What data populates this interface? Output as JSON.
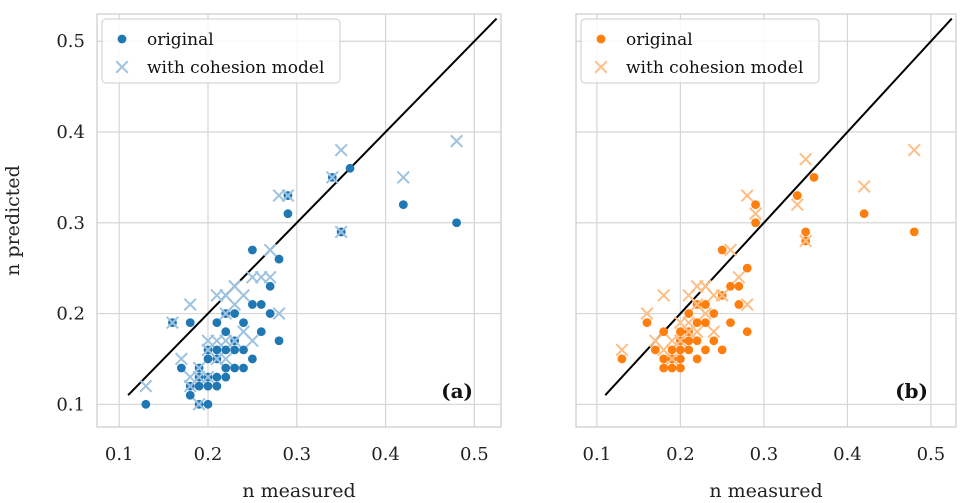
{
  "chart_data": [
    {
      "type": "scatter",
      "panel_label": "(a)",
      "xlabel": "n measured",
      "ylabel": "n predicted",
      "xlim": [
        0.075,
        0.53
      ],
      "ylim": [
        0.075,
        0.53
      ],
      "xticks": [
        "0.1",
        "0.2",
        "0.3",
        "0.4",
        "0.5"
      ],
      "yticks": [
        "0.1",
        "0.2",
        "0.3",
        "0.4",
        "0.5"
      ],
      "grid": true,
      "legend_position": "top-left",
      "identity_line": {
        "from": [
          0.11,
          0.11
        ],
        "to": [
          0.525,
          0.525
        ],
        "color": "#000000"
      },
      "series": [
        {
          "name": "original",
          "marker": "circle",
          "color": "#1f77b4",
          "points": [
            [
              0.13,
              0.1
            ],
            [
              0.16,
              0.19
            ],
            [
              0.17,
              0.14
            ],
            [
              0.18,
              0.19
            ],
            [
              0.18,
              0.12
            ],
            [
              0.18,
              0.11
            ],
            [
              0.19,
              0.13
            ],
            [
              0.19,
              0.12
            ],
            [
              0.19,
              0.1
            ],
            [
              0.19,
              0.14
            ],
            [
              0.2,
              0.15
            ],
            [
              0.2,
              0.16
            ],
            [
              0.2,
              0.13
            ],
            [
              0.2,
              0.1
            ],
            [
              0.2,
              0.12
            ],
            [
              0.21,
              0.19
            ],
            [
              0.21,
              0.16
            ],
            [
              0.21,
              0.15
            ],
            [
              0.21,
              0.13
            ],
            [
              0.21,
              0.12
            ],
            [
              0.22,
              0.2
            ],
            [
              0.22,
              0.18
            ],
            [
              0.22,
              0.16
            ],
            [
              0.22,
              0.14
            ],
            [
              0.22,
              0.13
            ],
            [
              0.23,
              0.2
            ],
            [
              0.23,
              0.17
            ],
            [
              0.23,
              0.16
            ],
            [
              0.23,
              0.14
            ],
            [
              0.24,
              0.19
            ],
            [
              0.24,
              0.16
            ],
            [
              0.24,
              0.14
            ],
            [
              0.25,
              0.27
            ],
            [
              0.25,
              0.21
            ],
            [
              0.25,
              0.15
            ],
            [
              0.26,
              0.21
            ],
            [
              0.26,
              0.18
            ],
            [
              0.27,
              0.23
            ],
            [
              0.27,
              0.2
            ],
            [
              0.28,
              0.26
            ],
            [
              0.28,
              0.17
            ],
            [
              0.29,
              0.33
            ],
            [
              0.29,
              0.31
            ],
            [
              0.34,
              0.35
            ],
            [
              0.35,
              0.29
            ],
            [
              0.35,
              0.29
            ],
            [
              0.36,
              0.36
            ],
            [
              0.42,
              0.32
            ],
            [
              0.48,
              0.3
            ]
          ]
        },
        {
          "name": "with cohesion model",
          "marker": "x",
          "color": "#9dc3e0",
          "points": [
            [
              0.13,
              0.12
            ],
            [
              0.16,
              0.19
            ],
            [
              0.17,
              0.15
            ],
            [
              0.18,
              0.21
            ],
            [
              0.18,
              0.13
            ],
            [
              0.18,
              0.12
            ],
            [
              0.19,
              0.14
            ],
            [
              0.19,
              0.13
            ],
            [
              0.19,
              0.1
            ],
            [
              0.2,
              0.17
            ],
            [
              0.2,
              0.16
            ],
            [
              0.2,
              0.13
            ],
            [
              0.21,
              0.22
            ],
            [
              0.21,
              0.17
            ],
            [
              0.21,
              0.15
            ],
            [
              0.22,
              0.22
            ],
            [
              0.22,
              0.2
            ],
            [
              0.22,
              0.17
            ],
            [
              0.22,
              0.15
            ],
            [
              0.23,
              0.23
            ],
            [
              0.23,
              0.21
            ],
            [
              0.23,
              0.17
            ],
            [
              0.24,
              0.22
            ],
            [
              0.24,
              0.18
            ],
            [
              0.25,
              0.24
            ],
            [
              0.25,
              0.17
            ],
            [
              0.26,
              0.24
            ],
            [
              0.27,
              0.27
            ],
            [
              0.27,
              0.24
            ],
            [
              0.28,
              0.33
            ],
            [
              0.28,
              0.2
            ],
            [
              0.29,
              0.33
            ],
            [
              0.34,
              0.35
            ],
            [
              0.35,
              0.38
            ],
            [
              0.35,
              0.29
            ],
            [
              0.42,
              0.35
            ],
            [
              0.48,
              0.39
            ]
          ]
        }
      ]
    },
    {
      "type": "scatter",
      "panel_label": "(b)",
      "xlabel": "n measured",
      "xlim": [
        0.075,
        0.53
      ],
      "ylim": [
        0.075,
        0.53
      ],
      "xticks": [
        "0.1",
        "0.2",
        "0.3",
        "0.4",
        "0.5"
      ],
      "grid": true,
      "legend_position": "top-left",
      "identity_line": {
        "from": [
          0.11,
          0.11
        ],
        "to": [
          0.525,
          0.525
        ],
        "color": "#000000"
      },
      "series": [
        {
          "name": "original",
          "marker": "circle",
          "color": "#ff7f0e",
          "points": [
            [
              0.13,
              0.15
            ],
            [
              0.16,
              0.19
            ],
            [
              0.17,
              0.16
            ],
            [
              0.18,
              0.18
            ],
            [
              0.18,
              0.15
            ],
            [
              0.18,
              0.14
            ],
            [
              0.19,
              0.16
            ],
            [
              0.19,
              0.15
            ],
            [
              0.19,
              0.14
            ],
            [
              0.2,
              0.18
            ],
            [
              0.2,
              0.17
            ],
            [
              0.2,
              0.16
            ],
            [
              0.2,
              0.14
            ],
            [
              0.2,
              0.15
            ],
            [
              0.21,
              0.2
            ],
            [
              0.21,
              0.18
            ],
            [
              0.21,
              0.17
            ],
            [
              0.21,
              0.16
            ],
            [
              0.22,
              0.21
            ],
            [
              0.22,
              0.19
            ],
            [
              0.22,
              0.17
            ],
            [
              0.22,
              0.15
            ],
            [
              0.23,
              0.21
            ],
            [
              0.23,
              0.19
            ],
            [
              0.23,
              0.16
            ],
            [
              0.24,
              0.2
            ],
            [
              0.24,
              0.17
            ],
            [
              0.25,
              0.27
            ],
            [
              0.25,
              0.22
            ],
            [
              0.25,
              0.16
            ],
            [
              0.26,
              0.23
            ],
            [
              0.26,
              0.19
            ],
            [
              0.27,
              0.23
            ],
            [
              0.27,
              0.21
            ],
            [
              0.28,
              0.25
            ],
            [
              0.28,
              0.18
            ],
            [
              0.29,
              0.32
            ],
            [
              0.29,
              0.3
            ],
            [
              0.34,
              0.33
            ],
            [
              0.35,
              0.29
            ],
            [
              0.35,
              0.28
            ],
            [
              0.36,
              0.35
            ],
            [
              0.42,
              0.31
            ],
            [
              0.48,
              0.29
            ]
          ]
        },
        {
          "name": "with cohesion model",
          "marker": "x",
          "color": "#fdbf87",
          "points": [
            [
              0.13,
              0.16
            ],
            [
              0.16,
              0.2
            ],
            [
              0.17,
              0.17
            ],
            [
              0.18,
              0.22
            ],
            [
              0.18,
              0.16
            ],
            [
              0.19,
              0.17
            ],
            [
              0.19,
              0.15
            ],
            [
              0.2,
              0.19
            ],
            [
              0.2,
              0.17
            ],
            [
              0.21,
              0.22
            ],
            [
              0.21,
              0.19
            ],
            [
              0.21,
              0.18
            ],
            [
              0.22,
              0.23
            ],
            [
              0.22,
              0.21
            ],
            [
              0.22,
              0.18
            ],
            [
              0.23,
              0.23
            ],
            [
              0.23,
              0.2
            ],
            [
              0.24,
              0.22
            ],
            [
              0.24,
              0.18
            ],
            [
              0.25,
              0.22
            ],
            [
              0.26,
              0.27
            ],
            [
              0.27,
              0.24
            ],
            [
              0.28,
              0.33
            ],
            [
              0.28,
              0.21
            ],
            [
              0.29,
              0.31
            ],
            [
              0.34,
              0.32
            ],
            [
              0.35,
              0.37
            ],
            [
              0.35,
              0.28
            ],
            [
              0.42,
              0.34
            ],
            [
              0.48,
              0.38
            ]
          ]
        }
      ]
    }
  ]
}
